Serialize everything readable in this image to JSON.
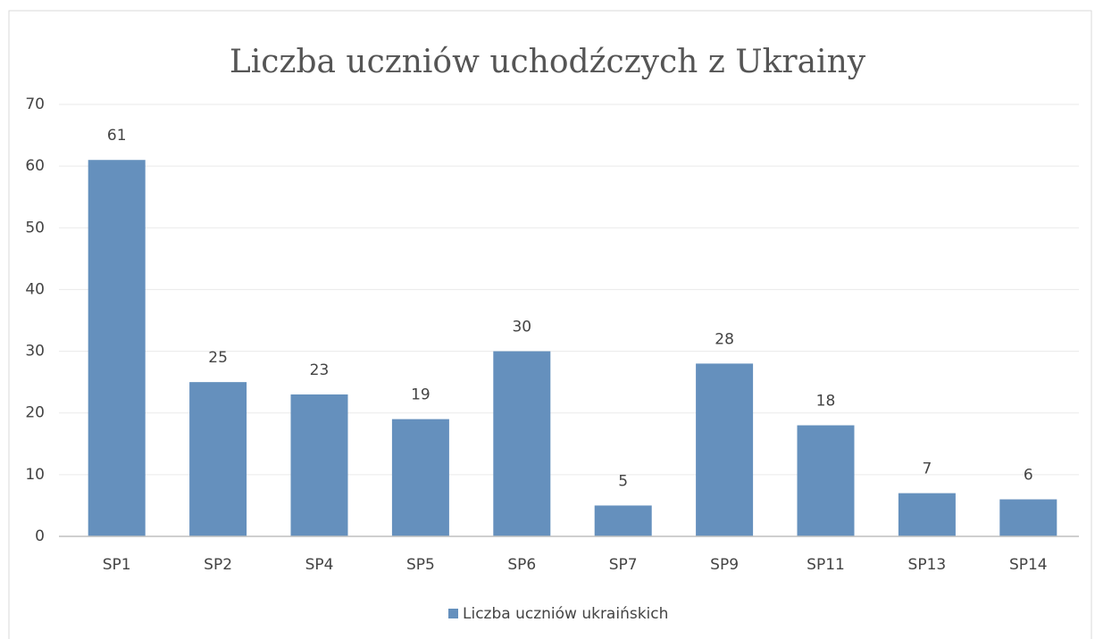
{
  "chart_data": {
    "type": "bar",
    "title": "Liczba uczniów uchodźczych z Ukrainy",
    "categories": [
      "SP1",
      "SP2",
      "SP4",
      "SP5",
      "SP6",
      "SP7",
      "SP9",
      "SP11",
      "SP13",
      "SP14"
    ],
    "series": [
      {
        "name": "Liczba uczniów ukraińskich",
        "color": "#6590bd",
        "values": [
          61,
          25,
          23,
          19,
          30,
          5,
          28,
          18,
          7,
          6
        ]
      }
    ],
    "ylim": [
      0,
      70
    ],
    "yticks": [
      0,
      10,
      20,
      30,
      40,
      50,
      60,
      70
    ],
    "grid": true,
    "legend": "bottom"
  }
}
